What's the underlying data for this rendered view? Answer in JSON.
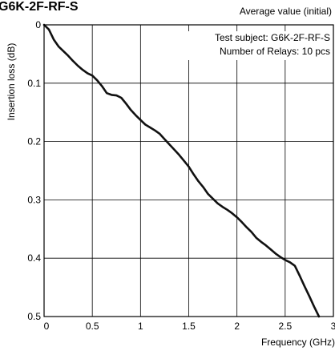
{
  "chart_data": {
    "type": "line",
    "title": "G6K-2F-RF-S",
    "subtitle": "Average value (initial)",
    "xlabel": "Frequency (GHz)",
    "ylabel": "Insertion loss (dB)",
    "xlim": [
      0,
      3
    ],
    "ylim": [
      0,
      0.5
    ],
    "y_inverted": true,
    "grid": true,
    "x_ticks": [
      "0",
      "0.5",
      "1",
      "1.5",
      "2",
      "2.5",
      "3"
    ],
    "y_ticks": [
      "0",
      "0.1",
      "0.2",
      "0.3",
      "0.4",
      "0.5"
    ],
    "annotations": [
      "Test subject: G6K-2F-RF-S",
      "Number of Relays: 10 pcs"
    ],
    "series": [
      {
        "color": "#111111",
        "x": [
          0,
          0.05,
          0.1,
          0.15,
          0.2,
          0.25,
          0.3,
          0.35,
          0.4,
          0.45,
          0.5,
          0.55,
          0.6,
          0.65,
          0.7,
          0.75,
          0.8,
          0.85,
          0.9,
          0.95,
          1.0,
          1.05,
          1.1,
          1.15,
          1.2,
          1.25,
          1.3,
          1.35,
          1.4,
          1.45,
          1.5,
          1.55,
          1.6,
          1.65,
          1.7,
          1.75,
          1.8,
          1.85,
          1.9,
          1.95,
          2.0,
          2.05,
          2.1,
          2.15,
          2.2,
          2.25,
          2.3,
          2.35,
          2.4,
          2.45,
          2.5,
          2.55,
          2.6,
          2.65,
          2.7,
          2.75,
          2.8,
          2.85
        ],
        "y": [
          0.0,
          0.008,
          0.025,
          0.037,
          0.045,
          0.053,
          0.062,
          0.07,
          0.077,
          0.083,
          0.087,
          0.095,
          0.105,
          0.117,
          0.12,
          0.121,
          0.125,
          0.135,
          0.146,
          0.155,
          0.163,
          0.171,
          0.176,
          0.181,
          0.187,
          0.196,
          0.205,
          0.214,
          0.223,
          0.233,
          0.243,
          0.256,
          0.268,
          0.278,
          0.29,
          0.298,
          0.306,
          0.312,
          0.317,
          0.323,
          0.33,
          0.338,
          0.347,
          0.355,
          0.365,
          0.372,
          0.378,
          0.385,
          0.392,
          0.398,
          0.403,
          0.407,
          0.413,
          0.43,
          0.448,
          0.465,
          0.483,
          0.5
        ]
      }
    ]
  }
}
